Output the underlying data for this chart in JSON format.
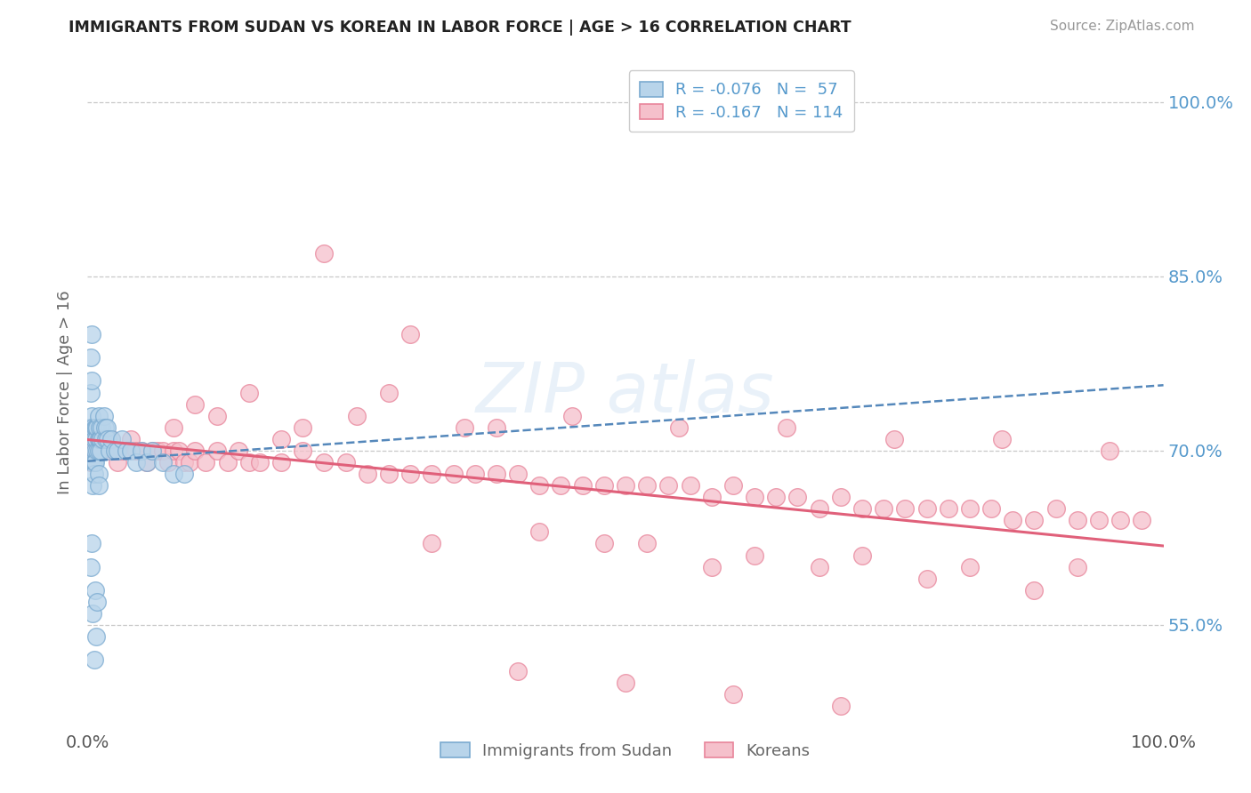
{
  "title": "IMMIGRANTS FROM SUDAN VS KOREAN IN LABOR FORCE | AGE > 16 CORRELATION CHART",
  "source": "Source: ZipAtlas.com",
  "ylabel": "In Labor Force | Age > 16",
  "xlim": [
    0.0,
    1.0
  ],
  "ylim": [
    0.46,
    1.04
  ],
  "yticks": [
    0.55,
    0.7,
    0.85,
    1.0
  ],
  "ytick_labels": [
    "55.0%",
    "70.0%",
    "85.0%",
    "100.0%"
  ],
  "xtick_labels": [
    "0.0%",
    "100.0%"
  ],
  "grid_color": "#c8c8c8",
  "background_color": "#ffffff",
  "sudan_face_color": "#b8d4ea",
  "sudan_edge_color": "#7aaad0",
  "korean_face_color": "#f5c0cb",
  "korean_edge_color": "#e8849a",
  "sudan_trend_color": "#5588bb",
  "korean_trend_color": "#e0607a",
  "legend_line1": "R = -0.076   N =  57",
  "legend_line2": "R = -0.167   N = 114",
  "title_color": "#222222",
  "axis_label_color": "#666666",
  "right_tick_color": "#5599cc",
  "bottom_label_color": "#555555",
  "sudan_x": [
    0.002,
    0.003,
    0.003,
    0.004,
    0.004,
    0.004,
    0.005,
    0.005,
    0.005,
    0.005,
    0.006,
    0.006,
    0.006,
    0.007,
    0.007,
    0.007,
    0.008,
    0.008,
    0.009,
    0.009,
    0.01,
    0.01,
    0.01,
    0.011,
    0.011,
    0.012,
    0.012,
    0.013,
    0.014,
    0.015,
    0.016,
    0.017,
    0.018,
    0.019,
    0.02,
    0.022,
    0.025,
    0.028,
    0.032,
    0.036,
    0.04,
    0.045,
    0.05,
    0.055,
    0.06,
    0.07,
    0.08,
    0.09,
    0.01,
    0.01,
    0.008,
    0.006,
    0.005,
    0.007,
    0.009,
    0.003,
    0.004
  ],
  "sudan_y": [
    0.72,
    0.75,
    0.78,
    0.8,
    0.76,
    0.73,
    0.72,
    0.7,
    0.69,
    0.67,
    0.71,
    0.69,
    0.68,
    0.72,
    0.7,
    0.69,
    0.72,
    0.71,
    0.72,
    0.7,
    0.73,
    0.71,
    0.7,
    0.72,
    0.71,
    0.71,
    0.7,
    0.72,
    0.71,
    0.73,
    0.72,
    0.71,
    0.72,
    0.71,
    0.7,
    0.71,
    0.7,
    0.7,
    0.71,
    0.7,
    0.7,
    0.69,
    0.7,
    0.69,
    0.7,
    0.69,
    0.68,
    0.68,
    0.68,
    0.67,
    0.54,
    0.52,
    0.56,
    0.58,
    0.57,
    0.6,
    0.62
  ],
  "korean_x": [
    0.003,
    0.004,
    0.005,
    0.005,
    0.006,
    0.007,
    0.008,
    0.009,
    0.01,
    0.011,
    0.012,
    0.013,
    0.015,
    0.017,
    0.019,
    0.022,
    0.025,
    0.028,
    0.032,
    0.036,
    0.04,
    0.045,
    0.05,
    0.055,
    0.06,
    0.065,
    0.07,
    0.075,
    0.08,
    0.085,
    0.09,
    0.095,
    0.1,
    0.11,
    0.12,
    0.13,
    0.14,
    0.15,
    0.16,
    0.18,
    0.2,
    0.22,
    0.24,
    0.26,
    0.28,
    0.3,
    0.32,
    0.34,
    0.36,
    0.38,
    0.4,
    0.42,
    0.44,
    0.46,
    0.48,
    0.5,
    0.52,
    0.54,
    0.56,
    0.58,
    0.6,
    0.62,
    0.64,
    0.66,
    0.68,
    0.7,
    0.72,
    0.74,
    0.76,
    0.78,
    0.8,
    0.82,
    0.84,
    0.86,
    0.88,
    0.9,
    0.92,
    0.94,
    0.96,
    0.98,
    0.22,
    0.3,
    0.15,
    0.18,
    0.25,
    0.1,
    0.35,
    0.08,
    0.12,
    0.2,
    0.28,
    0.38,
    0.45,
    0.55,
    0.65,
    0.75,
    0.85,
    0.95,
    0.48,
    0.58,
    0.68,
    0.78,
    0.88,
    0.32,
    0.42,
    0.52,
    0.62,
    0.72,
    0.82,
    0.92,
    0.4,
    0.5,
    0.6,
    0.7
  ],
  "korean_y": [
    0.69,
    0.7,
    0.71,
    0.69,
    0.7,
    0.7,
    0.71,
    0.7,
    0.7,
    0.71,
    0.7,
    0.7,
    0.71,
    0.7,
    0.7,
    0.71,
    0.7,
    0.69,
    0.7,
    0.7,
    0.71,
    0.7,
    0.7,
    0.69,
    0.7,
    0.7,
    0.7,
    0.69,
    0.7,
    0.7,
    0.69,
    0.69,
    0.7,
    0.69,
    0.7,
    0.69,
    0.7,
    0.69,
    0.69,
    0.69,
    0.7,
    0.69,
    0.69,
    0.68,
    0.68,
    0.68,
    0.68,
    0.68,
    0.68,
    0.68,
    0.68,
    0.67,
    0.67,
    0.67,
    0.67,
    0.67,
    0.67,
    0.67,
    0.67,
    0.66,
    0.67,
    0.66,
    0.66,
    0.66,
    0.65,
    0.66,
    0.65,
    0.65,
    0.65,
    0.65,
    0.65,
    0.65,
    0.65,
    0.64,
    0.64,
    0.65,
    0.64,
    0.64,
    0.64,
    0.64,
    0.87,
    0.8,
    0.75,
    0.71,
    0.73,
    0.74,
    0.72,
    0.72,
    0.73,
    0.72,
    0.75,
    0.72,
    0.73,
    0.72,
    0.72,
    0.71,
    0.71,
    0.7,
    0.62,
    0.6,
    0.6,
    0.59,
    0.58,
    0.62,
    0.63,
    0.62,
    0.61,
    0.61,
    0.6,
    0.6,
    0.51,
    0.5,
    0.49,
    0.48
  ]
}
